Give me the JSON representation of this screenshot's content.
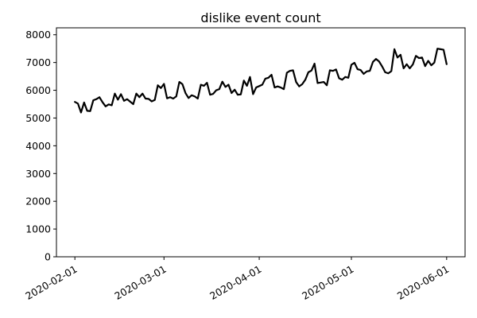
{
  "chart_data": {
    "type": "line",
    "title": "dislike event count",
    "xlabel": "",
    "ylabel": "",
    "x_ticks": [
      "2020-02-01",
      "2020-03-01",
      "2020-04-01",
      "2020-05-01",
      "2020-06-01"
    ],
    "y_ticks": [
      0,
      1000,
      2000,
      3000,
      4000,
      5000,
      6000,
      7000,
      8000
    ],
    "xlim": [
      "2020-01-26",
      "2020-06-07"
    ],
    "ylim": [
      0,
      8250
    ],
    "grid": false,
    "line_color": "#000000",
    "series": [
      {
        "x": [
          "2020-02-01",
          "2020-02-02",
          "2020-02-03",
          "2020-02-04",
          "2020-02-05",
          "2020-02-06",
          "2020-02-07",
          "2020-02-08",
          "2020-02-09",
          "2020-02-10",
          "2020-02-11",
          "2020-02-12",
          "2020-02-13",
          "2020-02-14",
          "2020-02-15",
          "2020-02-16",
          "2020-02-17",
          "2020-02-18",
          "2020-02-19",
          "2020-02-20",
          "2020-02-21",
          "2020-02-22",
          "2020-02-23",
          "2020-02-24",
          "2020-02-25",
          "2020-02-26",
          "2020-02-27",
          "2020-02-28",
          "2020-02-29",
          "2020-03-01",
          "2020-03-02",
          "2020-03-03",
          "2020-03-04",
          "2020-03-05",
          "2020-03-06",
          "2020-03-07",
          "2020-03-08",
          "2020-03-09",
          "2020-03-10",
          "2020-03-11",
          "2020-03-12",
          "2020-03-13",
          "2020-03-14",
          "2020-03-15",
          "2020-03-16",
          "2020-03-17",
          "2020-03-18",
          "2020-03-19",
          "2020-03-20",
          "2020-03-21",
          "2020-03-22",
          "2020-03-23",
          "2020-03-24",
          "2020-03-25",
          "2020-03-26",
          "2020-03-27",
          "2020-03-28",
          "2020-03-29",
          "2020-03-30",
          "2020-03-31",
          "2020-04-01",
          "2020-04-02",
          "2020-04-03",
          "2020-04-04",
          "2020-04-05",
          "2020-04-06",
          "2020-04-07",
          "2020-04-08",
          "2020-04-09",
          "2020-04-10",
          "2020-04-11",
          "2020-04-12",
          "2020-04-13",
          "2020-04-14",
          "2020-04-15",
          "2020-04-16",
          "2020-04-17",
          "2020-04-18",
          "2020-04-19",
          "2020-04-20",
          "2020-04-21",
          "2020-04-22",
          "2020-04-23",
          "2020-04-24",
          "2020-04-25",
          "2020-04-26",
          "2020-04-27",
          "2020-04-28",
          "2020-04-29",
          "2020-04-30",
          "2020-05-01",
          "2020-05-02",
          "2020-05-03",
          "2020-05-04",
          "2020-05-05",
          "2020-05-06",
          "2020-05-07",
          "2020-05-08",
          "2020-05-09",
          "2020-05-10",
          "2020-05-11",
          "2020-05-12",
          "2020-05-13",
          "2020-05-14",
          "2020-05-15",
          "2020-05-16",
          "2020-05-17",
          "2020-05-18",
          "2020-05-19",
          "2020-05-20",
          "2020-05-21",
          "2020-05-22",
          "2020-05-23",
          "2020-05-24",
          "2020-05-25",
          "2020-05-26",
          "2020-05-27",
          "2020-05-28",
          "2020-05-29",
          "2020-05-30",
          "2020-05-31",
          "2020-06-01"
        ],
        "values": [
          5580,
          5520,
          5200,
          5560,
          5260,
          5250,
          5640,
          5680,
          5750,
          5570,
          5420,
          5490,
          5460,
          5880,
          5660,
          5860,
          5620,
          5680,
          5590,
          5500,
          5880,
          5750,
          5880,
          5700,
          5690,
          5600,
          5650,
          6180,
          6080,
          6230,
          5710,
          5750,
          5700,
          5780,
          6300,
          6220,
          5900,
          5720,
          5820,
          5780,
          5700,
          6200,
          6160,
          6270,
          5840,
          5870,
          6000,
          6040,
          6310,
          6120,
          6200,
          5900,
          6020,
          5840,
          5850,
          6350,
          6160,
          6480,
          5860,
          6100,
          6150,
          6200,
          6420,
          6450,
          6560,
          6100,
          6140,
          6100,
          6040,
          6630,
          6700,
          6720,
          6300,
          6140,
          6220,
          6380,
          6650,
          6710,
          6960,
          6260,
          6280,
          6300,
          6180,
          6720,
          6700,
          6750,
          6430,
          6380,
          6480,
          6450,
          6920,
          6990,
          6760,
          6730,
          6590,
          6680,
          6700,
          7020,
          7130,
          7040,
          6860,
          6650,
          6610,
          6690,
          7480,
          7180,
          7280,
          6790,
          6940,
          6790,
          6930,
          7240,
          7160,
          7180,
          6870,
          7060,
          6900,
          7000,
          7500,
          7480,
          7460,
          6940
        ]
      }
    ]
  }
}
